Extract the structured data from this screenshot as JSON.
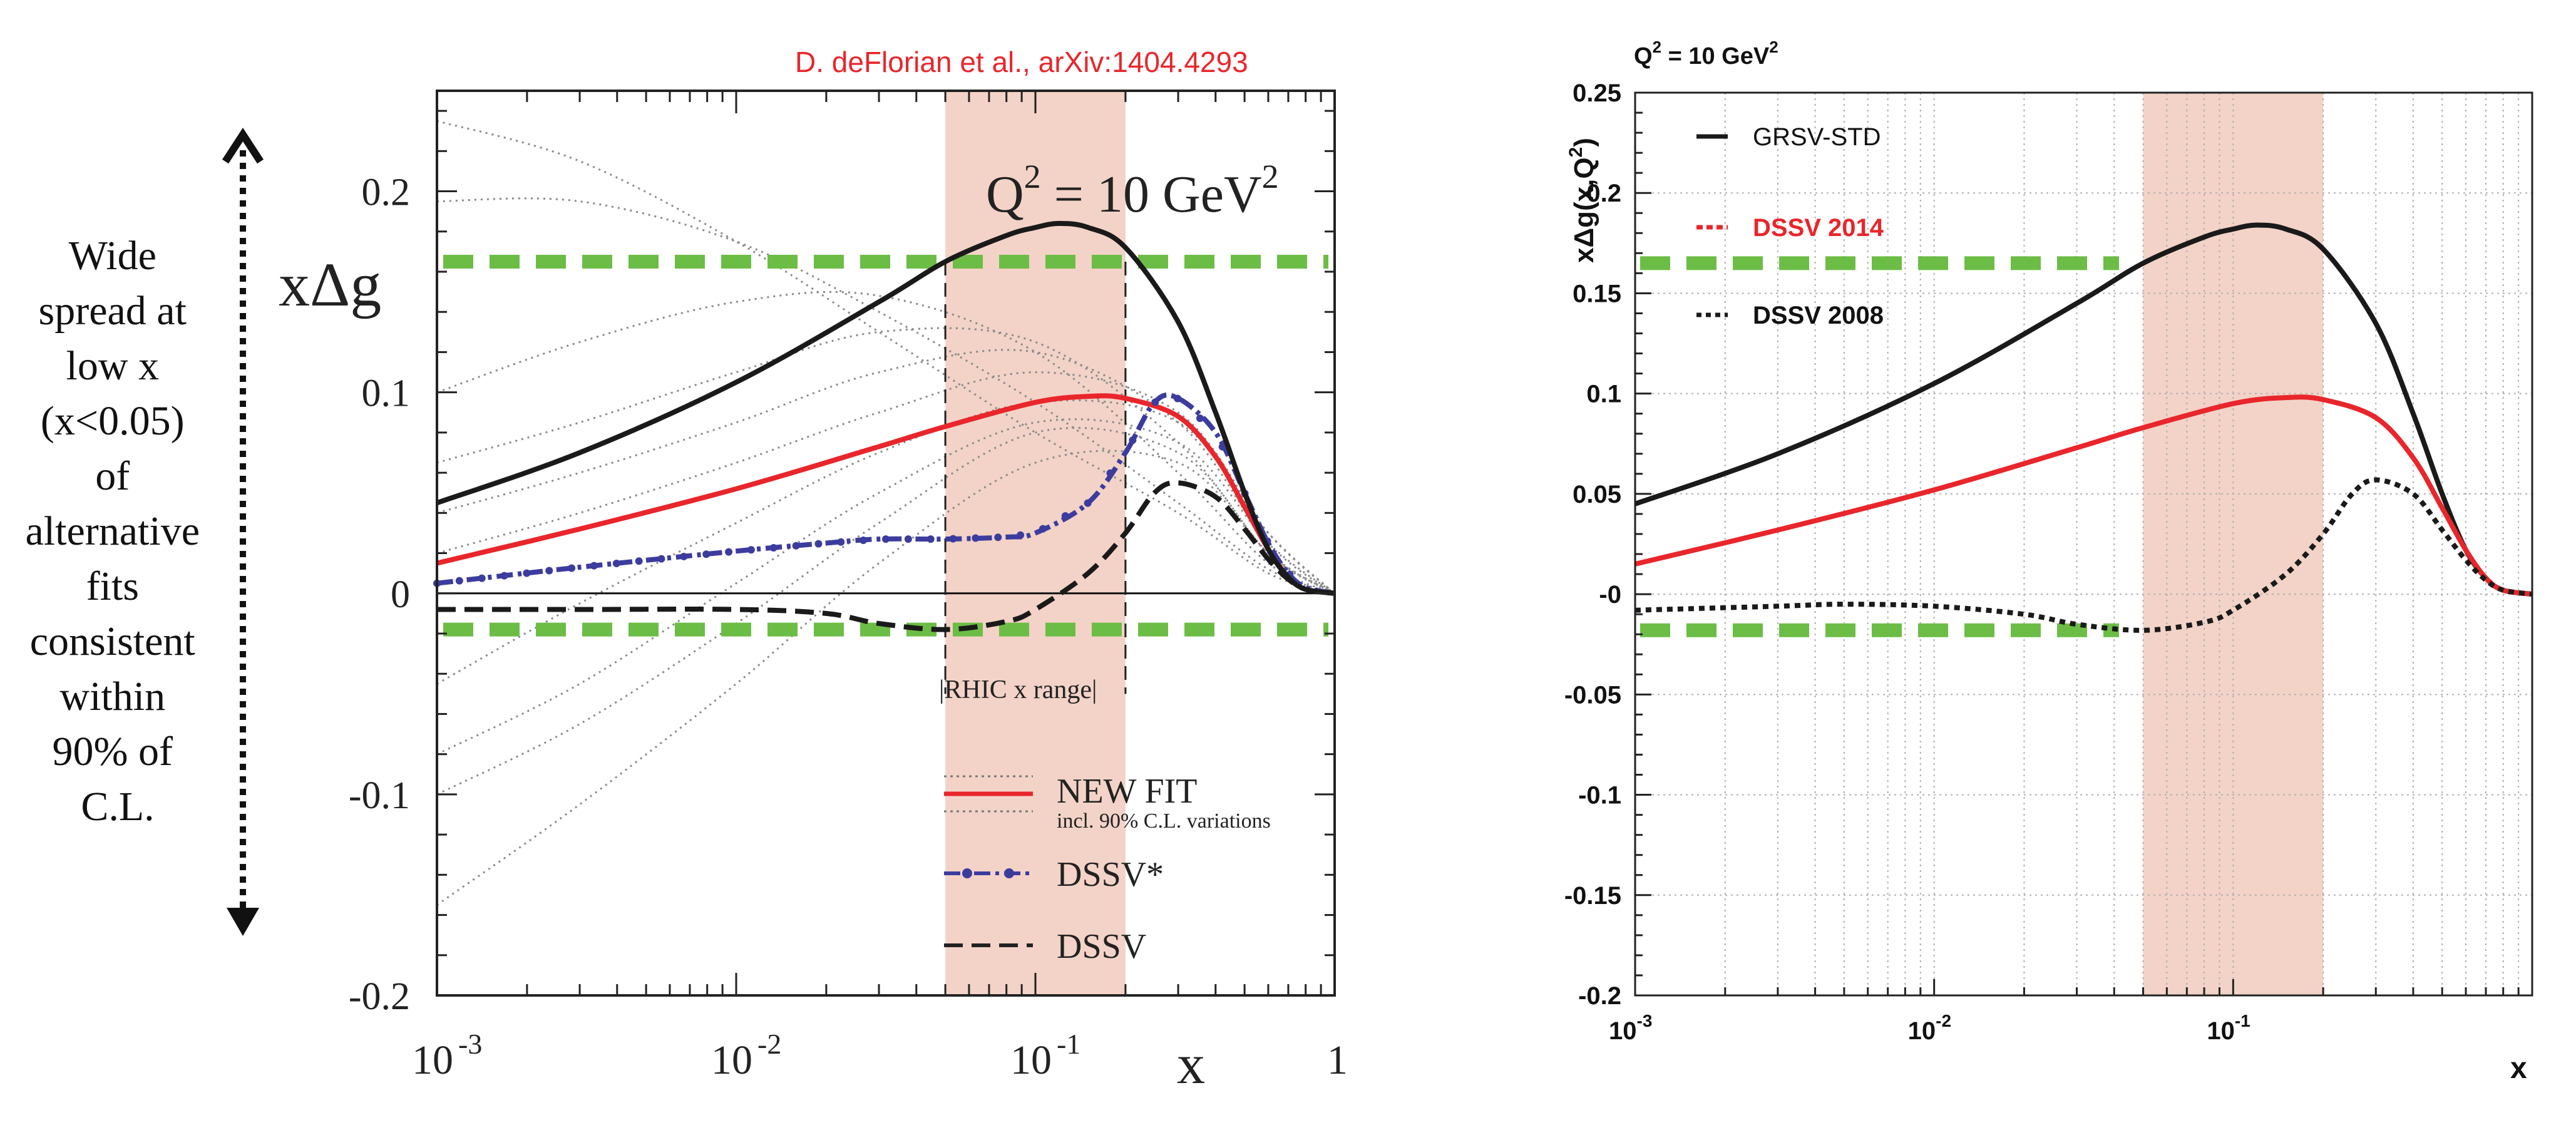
{
  "annotation": {
    "lines": [
      "Wide",
      "spread at",
      "low x",
      "(x<0.05)",
      "of",
      "alternative",
      "fits",
      "consistent",
      "within",
      "90% of",
      "C.L."
    ]
  },
  "colors": {
    "red": "#e8262b",
    "black": "#1a1a1a",
    "blue": "#3c3c9e",
    "green": "#6cbd45",
    "band": "#f3d3c7",
    "gray": "#8a8a8a"
  },
  "left": {
    "citation": "D. deFlorian et al., arXiv:1404.4293",
    "ylabel_main": "xΔg",
    "q2_main": "Q",
    "q2_sup": "2",
    "q2_rest": " = 10 GeV",
    "q2_sup2": "2",
    "xlabel": "x",
    "rhic_label": "|RHIC x range|",
    "legend": {
      "new_fit": "NEW FIT",
      "new_fit_sub": "incl. 90% C.L. variations",
      "dssv_star": "DSSV*",
      "dssv": "DSSV"
    },
    "yticks": [
      "0.2",
      "0.1",
      "0",
      "-0.1",
      "-0.2"
    ],
    "xticks": [
      {
        "base": "10",
        "exp": "-3"
      },
      {
        "base": "10",
        "exp": "-2"
      },
      {
        "base": "10",
        "exp": "-1"
      },
      {
        "base": "1",
        "exp": ""
      }
    ]
  },
  "right": {
    "q2_main": "Q",
    "q2_sup": "2",
    "q2_rest": " = 10 GeV",
    "q2_sup2": "2",
    "ylabel": "xΔg(x,Q",
    "ylabel_sup": "2",
    "ylabel_end": ")",
    "xlabel": "x",
    "legend": {
      "grsv": "GRSV-STD",
      "dssv2014": "DSSV 2014",
      "dssv2008": "DSSV 2008"
    },
    "yticks": [
      "0.25",
      "0.2",
      "0.15",
      "0.1",
      "0.05",
      "-0",
      "-0.05",
      "-0.1",
      "-0.15",
      "-0.2"
    ],
    "xticks": [
      {
        "base": "10",
        "exp": "-3"
      },
      {
        "base": "10",
        "exp": "-2"
      },
      {
        "base": "10",
        "exp": "-1"
      }
    ]
  },
  "chart_data": [
    {
      "type": "line",
      "title": "",
      "xlabel": "x",
      "ylabel": "xΔg",
      "xscale": "log",
      "xlim": [
        0.001,
        1
      ],
      "ylim": [
        -0.2,
        0.25
      ],
      "shaded_band": [
        0.05,
        0.2
      ],
      "green_levels": [
        0.165,
        -0.018
      ],
      "legend_placement": "bottom-right",
      "series": [
        {
          "name": "NEW FIT",
          "color": "#e8262b",
          "style": "solid",
          "x": [
            0.001,
            0.003,
            0.01,
            0.03,
            0.05,
            0.1,
            0.15,
            0.2,
            0.3,
            0.4,
            0.5,
            0.6,
            0.7,
            0.8,
            1.0
          ],
          "y": [
            0.015,
            0.032,
            0.052,
            0.073,
            0.083,
            0.095,
            0.098,
            0.097,
            0.088,
            0.068,
            0.043,
            0.022,
            0.008,
            0.002,
            0.0
          ]
        },
        {
          "name": "DSSV*",
          "color": "#3c3c9e",
          "style": "dash-dot-marker",
          "x": [
            0.001,
            0.003,
            0.01,
            0.02,
            0.03,
            0.05,
            0.08,
            0.1,
            0.15,
            0.2,
            0.25,
            0.3,
            0.4,
            0.5,
            0.6,
            0.7,
            0.8,
            1.0
          ],
          "y": [
            0.005,
            0.013,
            0.021,
            0.025,
            0.027,
            0.027,
            0.028,
            0.03,
            0.045,
            0.07,
            0.095,
            0.097,
            0.08,
            0.05,
            0.025,
            0.01,
            0.003,
            0.0
          ]
        },
        {
          "name": "DSSV",
          "color": "#1a1a1a",
          "style": "dashed",
          "x": [
            0.001,
            0.003,
            0.01,
            0.02,
            0.03,
            0.05,
            0.08,
            0.1,
            0.15,
            0.2,
            0.25,
            0.3,
            0.4,
            0.5,
            0.6,
            0.7,
            0.8,
            1.0
          ],
          "y": [
            -0.008,
            -0.008,
            -0.008,
            -0.01,
            -0.015,
            -0.018,
            -0.014,
            -0.008,
            0.01,
            0.03,
            0.05,
            0.055,
            0.048,
            0.032,
            0.017,
            0.007,
            0.002,
            0.0
          ]
        },
        {
          "name": "GRSV-STD",
          "color": "#1a1a1a",
          "style": "solid",
          "x": [
            0.001,
            0.003,
            0.01,
            0.03,
            0.05,
            0.08,
            0.1,
            0.12,
            0.15,
            0.2,
            0.3,
            0.4,
            0.5,
            0.6,
            0.7,
            0.8,
            1.0
          ],
          "y": [
            0.045,
            0.07,
            0.105,
            0.145,
            0.165,
            0.178,
            0.182,
            0.184,
            0.182,
            0.172,
            0.135,
            0.09,
            0.05,
            0.022,
            0.008,
            0.002,
            0.0
          ]
        }
      ],
      "variations": [
        {
          "x": [
            0.001,
            0.003,
            0.01,
            0.03,
            0.1,
            0.3,
            0.6,
            1.0
          ],
          "y": [
            0.235,
            0.215,
            0.175,
            0.13,
            0.08,
            0.04,
            0.01,
            0.0
          ]
        },
        {
          "x": [
            0.001,
            0.003,
            0.01,
            0.03,
            0.1,
            0.3,
            0.6,
            1.0
          ],
          "y": [
            0.195,
            0.195,
            0.175,
            0.14,
            0.095,
            0.045,
            0.012,
            0.0
          ]
        },
        {
          "x": [
            0.001,
            0.003,
            0.01,
            0.03,
            0.1,
            0.3,
            0.6,
            1.0
          ],
          "y": [
            0.1,
            0.125,
            0.145,
            0.148,
            0.12,
            0.06,
            0.015,
            0.0
          ]
        },
        {
          "x": [
            0.001,
            0.003,
            0.01,
            0.03,
            0.1,
            0.3,
            0.6,
            1.0
          ],
          "y": [
            0.065,
            0.085,
            0.11,
            0.13,
            0.125,
            0.075,
            0.02,
            0.0
          ]
        },
        {
          "x": [
            0.001,
            0.003,
            0.01,
            0.03,
            0.1,
            0.3,
            0.6,
            1.0
          ],
          "y": [
            0.04,
            0.06,
            0.085,
            0.11,
            0.12,
            0.085,
            0.025,
            0.0
          ]
        },
        {
          "x": [
            0.001,
            0.003,
            0.01,
            0.03,
            0.1,
            0.3,
            0.6,
            1.0
          ],
          "y": [
            0.02,
            0.04,
            0.065,
            0.09,
            0.11,
            0.09,
            0.03,
            0.0
          ]
        },
        {
          "x": [
            0.001,
            0.003,
            0.01,
            0.03,
            0.1,
            0.3,
            0.6,
            1.0
          ],
          "y": [
            -0.045,
            -0.005,
            0.035,
            0.07,
            0.095,
            0.085,
            0.03,
            0.0
          ]
        },
        {
          "x": [
            0.001,
            0.003,
            0.01,
            0.03,
            0.1,
            0.3,
            0.6,
            1.0
          ],
          "y": [
            -0.08,
            -0.045,
            0.005,
            0.05,
            0.085,
            0.075,
            0.025,
            0.0
          ]
        },
        {
          "x": [
            0.001,
            0.003,
            0.01,
            0.03,
            0.1,
            0.3,
            0.6,
            1.0
          ],
          "y": [
            -0.1,
            -0.065,
            -0.015,
            0.035,
            0.08,
            0.07,
            0.02,
            0.0
          ]
        },
        {
          "x": [
            0.001,
            0.003,
            0.01,
            0.03,
            0.1,
            0.3,
            0.6,
            1.0
          ],
          "y": [
            -0.155,
            -0.105,
            -0.045,
            0.015,
            0.065,
            0.065,
            0.02,
            0.0
          ]
        }
      ]
    },
    {
      "type": "line",
      "title": "",
      "xlabel": "x",
      "ylabel": "xΔg(x,Q²)",
      "xscale": "log",
      "xlim": [
        0.001,
        1
      ],
      "ylim": [
        -0.2,
        0.25
      ],
      "shaded_band": [
        0.05,
        0.2
      ],
      "green_levels": [
        0.165,
        -0.018
      ],
      "grid": true,
      "legend_placement": "top-left",
      "series": [
        {
          "name": "GRSV-STD",
          "color": "#1a1a1a",
          "style": "solid",
          "x": [
            0.001,
            0.003,
            0.01,
            0.03,
            0.05,
            0.08,
            0.1,
            0.12,
            0.15,
            0.2,
            0.3,
            0.4,
            0.5,
            0.6,
            0.7,
            0.8,
            1.0
          ],
          "y": [
            0.045,
            0.07,
            0.105,
            0.145,
            0.165,
            0.178,
            0.182,
            0.184,
            0.182,
            0.172,
            0.135,
            0.09,
            0.05,
            0.022,
            0.008,
            0.002,
            0.0
          ]
        },
        {
          "name": "DSSV 2014",
          "color": "#e8262b",
          "style": "solid",
          "x": [
            0.001,
            0.003,
            0.01,
            0.03,
            0.05,
            0.1,
            0.15,
            0.2,
            0.3,
            0.4,
            0.5,
            0.6,
            0.7,
            0.8,
            1.0
          ],
          "y": [
            0.015,
            0.032,
            0.052,
            0.073,
            0.083,
            0.095,
            0.098,
            0.097,
            0.088,
            0.068,
            0.043,
            0.022,
            0.008,
            0.002,
            0.0
          ]
        },
        {
          "name": "DSSV 2008",
          "color": "#1a1a1a",
          "style": "dotted",
          "x": [
            0.001,
            0.003,
            0.005,
            0.01,
            0.02,
            0.03,
            0.05,
            0.08,
            0.1,
            0.15,
            0.2,
            0.25,
            0.3,
            0.4,
            0.5,
            0.6,
            0.7,
            0.8,
            1.0
          ],
          "y": [
            -0.008,
            -0.006,
            -0.005,
            -0.006,
            -0.01,
            -0.015,
            -0.018,
            -0.014,
            -0.008,
            0.01,
            0.03,
            0.05,
            0.057,
            0.05,
            0.032,
            0.017,
            0.007,
            0.002,
            0.0
          ]
        }
      ]
    }
  ]
}
